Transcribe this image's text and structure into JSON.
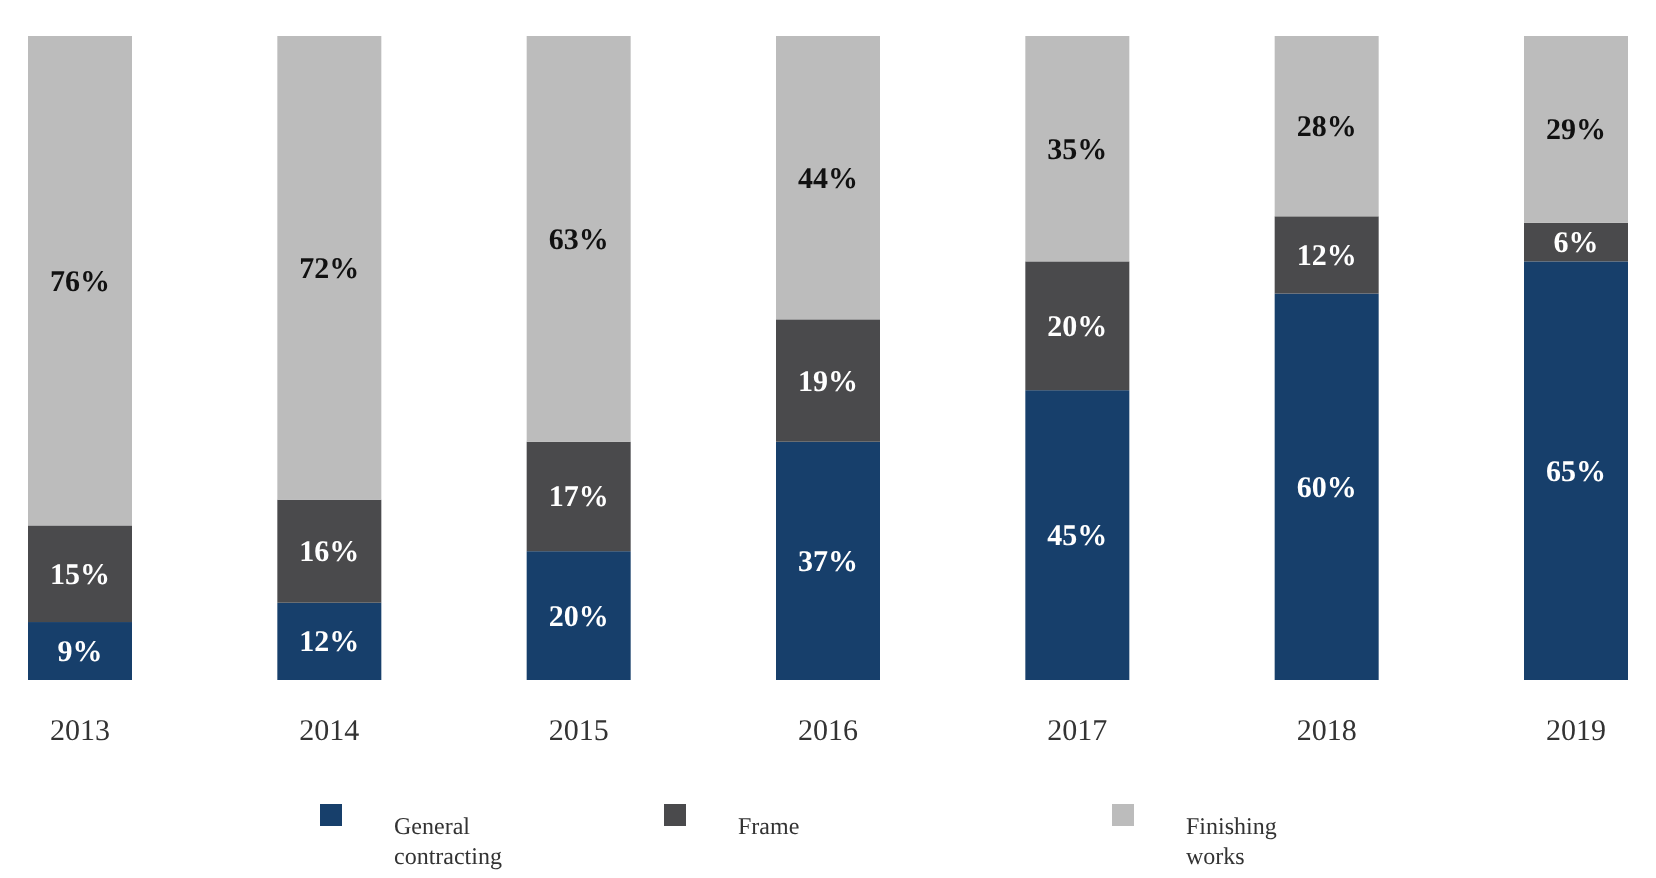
{
  "chart_data": {
    "type": "bar",
    "stacked": true,
    "legend": "bottom",
    "categories": [
      "2013",
      "2014",
      "2015",
      "2016",
      "2017",
      "2018",
      "2019"
    ],
    "series": [
      {
        "name": "General contracting",
        "color": "#173f6b",
        "values": [
          9,
          12,
          20,
          37,
          45,
          60,
          65
        ],
        "value_labels": [
          "9%",
          "12%",
          "20%",
          "37%",
          "45%",
          "60%",
          "65%"
        ]
      },
      {
        "name": "Frame",
        "color": "#4a4a4c",
        "values": [
          15,
          16,
          17,
          19,
          20,
          12,
          6
        ],
        "value_labels": [
          "15%",
          "16%",
          "17%",
          "19%",
          "20%",
          "12%",
          "6%"
        ]
      },
      {
        "name": "Finishing works",
        "color": "#bcbcbc",
        "values": [
          76,
          72,
          63,
          44,
          35,
          28,
          29
        ],
        "value_labels": [
          "76%",
          "72%",
          "63%",
          "44%",
          "35%",
          "28%",
          "29%"
        ]
      }
    ]
  }
}
